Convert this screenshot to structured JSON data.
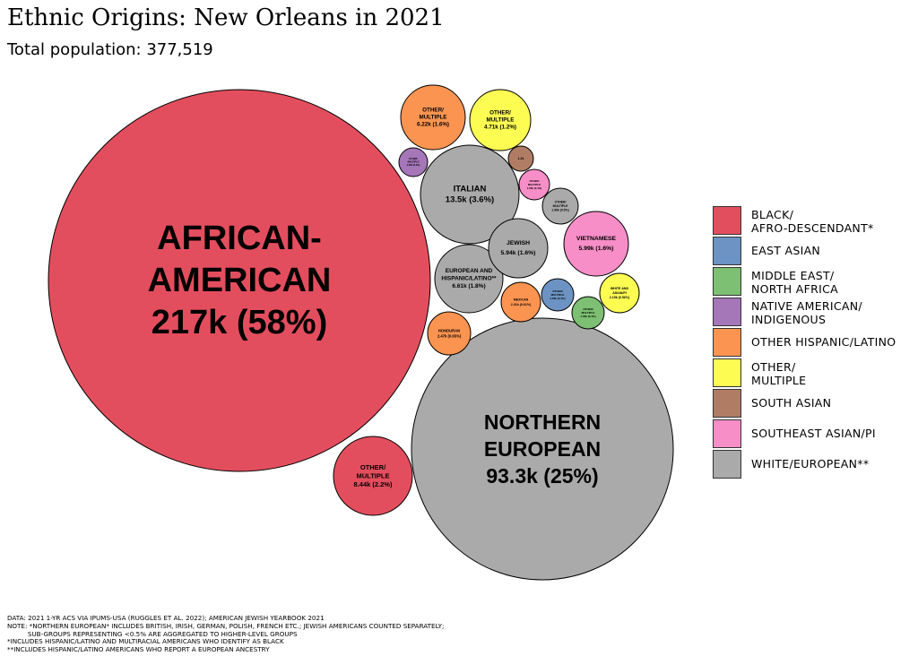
{
  "title": "Ethnic Origins: New Orleans in 2021",
  "subtitle": "Total population: 377,519",
  "colors": {
    "black": "#e34e5e",
    "east_asian": "#6c93c3",
    "middle_east": "#7dbf73",
    "native": "#a576b8",
    "hispanic": "#fb9450",
    "other": "#fdfc53",
    "south_asian": "#b07d64",
    "southeast_asian": "#f78ec7",
    "white": "#aaaaaa"
  },
  "legend": [
    {
      "label": "BLACK/\nAFRO-DESCENDANT*",
      "color": "#e34e5e"
    },
    {
      "label": "EAST ASIAN",
      "color": "#6c93c3"
    },
    {
      "label": "MIDDLE EAST/\nNORTH AFRICA",
      "color": "#7dbf73"
    },
    {
      "label": "NATIVE AMERICAN/\nINDIGENOUS",
      "color": "#a576b8"
    },
    {
      "label": "OTHER HISPANIC/LATINO",
      "color": "#fb9450"
    },
    {
      "label": "OTHER/\nMULTIPLE",
      "color": "#fdfc53"
    },
    {
      "label": "SOUTH ASIAN",
      "color": "#b07d64"
    },
    {
      "label": "SOUTHEAST ASIAN/PI",
      "color": "#f78ec7"
    },
    {
      "label": "WHITE/EUROPEAN**",
      "color": "#aaaaaa"
    }
  ],
  "notes": [
    "DATA: 2021 1-YR ACS VIA IPUMS-USA (RUGGLES ET AL. 2022); AMERICAN JEWISH YEARBOOK 2021",
    "NOTE: *NORTHERN EUROPEAN* INCLUDES BRITISH, IRISH, GERMAN, POLISH, FRENCH ETC.; JEWISH AMERICANS COUNTED SEPARATELY;",
    "          SUB-GROUPS REPRESENTING <0.5% ARE AGGREGATED TO HIGHER-LEVEL GROUPS",
    "*INCLUDES HISPANIC/LATINO AND MULTIRACIAL AMERICANS WHO IDENTIFY AS BLACK",
    "**INCLUDES HISPANIC/LATINO AMERICANS WHO REPORT A EUROPEAN ANCESTRY"
  ],
  "chart_data": {
    "type": "bubble",
    "title": "Ethnic Origins: New Orleans in 2021",
    "subtitle": "Total population: 377,519",
    "legend_position": "right",
    "series": [
      {
        "name": "BLACK/AFRO-DESCENDANT*",
        "group": "black",
        "label_lines": [
          "AFRICAN-",
          "AMERICAN",
          "217k (58%)"
        ],
        "value": 217000,
        "percent": 58
      },
      {
        "name": "WHITE/EUROPEAN**",
        "group": "white",
        "label_lines": [
          "NORTHERN",
          "EUROPEAN",
          "93.3k (25%)"
        ],
        "value": 93300,
        "percent": 25
      },
      {
        "name": "BLACK/AFRO-DESCENDANT*",
        "group": "black",
        "label_lines": [
          "OTHER/",
          "MULTIPLE",
          "8.44k (2.2%)"
        ],
        "value": 8440,
        "percent": 2.2
      },
      {
        "name": "WHITE/EUROPEAN**",
        "group": "white",
        "label_lines": [
          "ITALIAN",
          "13.5k (3.6%)"
        ],
        "value": 13500,
        "percent": 3.6
      },
      {
        "name": "WHITE/EUROPEAN**",
        "group": "white",
        "label_lines": [
          "EUROPEAN AND",
          "HISPANIC/LATINO**",
          "6.61k (1.8%)"
        ],
        "value": 6610,
        "percent": 1.8
      },
      {
        "name": "OTHER HISPANIC/LATINO",
        "group": "hispanic",
        "label_lines": [
          "OTHER/",
          "MULTIPLE",
          "6.22k (1.6%)"
        ],
        "value": 6220,
        "percent": 1.6
      },
      {
        "name": "SOUTHEAST ASIAN/PI",
        "group": "southeast_asian",
        "label_lines": [
          "VIETNAMESE",
          "5.99k (1.6%)"
        ],
        "value": 5990,
        "percent": 1.6
      },
      {
        "name": "WHITE/EUROPEAN**",
        "group": "white",
        "label_lines": [
          "JEWISH",
          "5.94k (1.6%)"
        ],
        "value": 5940,
        "percent": 1.6
      },
      {
        "name": "OTHER/MULTIPLE",
        "group": "other",
        "label_lines": [
          "OTHER/",
          "MULTIPLE",
          "4.71k (1.2%)"
        ],
        "value": 4710,
        "percent": 1.2
      },
      {
        "name": "OTHER HISPANIC/LATINO",
        "group": "hispanic",
        "label_lines": [
          "HONDURAN",
          "2.47k (0.65%)"
        ],
        "value": 2470,
        "percent": 0.65
      },
      {
        "name": "OTHER/MULTIPLE",
        "group": "other",
        "label_lines": [
          "WHITE AND",
          "ASIAN/PI",
          "2.15k (0.56%)"
        ],
        "value": 2150,
        "percent": 0.56
      },
      {
        "name": "OTHER HISPANIC/LATINO",
        "group": "hispanic",
        "label_lines": [
          "MEXICAN",
          "2.31k (0.61%)"
        ],
        "value": 2310,
        "percent": 0.61
      },
      {
        "name": "WHITE/EUROPEAN**",
        "group": "white",
        "label_lines": [
          "OTHER/",
          "MULTIPLE",
          "1.96k (0.5%)"
        ],
        "value": 1960,
        "percent": 0.5
      },
      {
        "name": "EAST ASIAN",
        "group": "east_asian",
        "label_lines": [
          "OTHER/",
          "MULTIPLE",
          "1.66k (0.4%)"
        ],
        "value": 1660,
        "percent": 0.4
      },
      {
        "name": "MIDDLE EAST/NORTH AFRICA",
        "group": "middle_east",
        "label_lines": [
          "OTHER/",
          "MULTIPLE",
          "1.56k (0.4%)"
        ],
        "value": 1560,
        "percent": 0.4
      },
      {
        "name": "SOUTHEAST ASIAN/PI",
        "group": "southeast_asian",
        "label_lines": [
          "OTHER/",
          "MULTIPLE",
          "1.56k (0.4%)"
        ],
        "value": 1560,
        "percent": 0.4
      },
      {
        "name": "NATIVE AMERICAN/INDIGENOUS",
        "group": "native",
        "label_lines": [
          "OTHER/",
          "MULTIPLE",
          "1.26k (0.3%)"
        ],
        "value": 1260,
        "percent": 0.3
      },
      {
        "name": "SOUTH ASIAN",
        "group": "south_asian",
        "label_lines": [
          "1.2k"
        ],
        "value": 1200,
        "percent": 0.3
      }
    ]
  }
}
